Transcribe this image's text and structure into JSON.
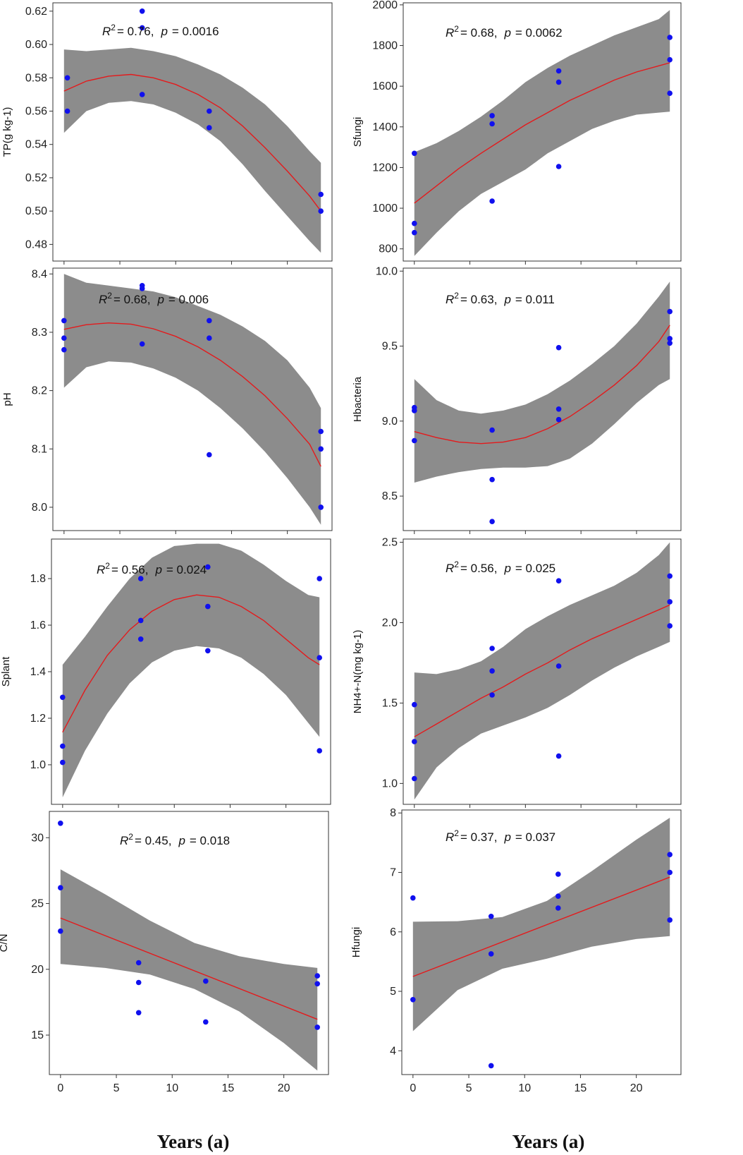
{
  "figure": {
    "xlabels": {
      "left": "Years (a)",
      "right": "Years (a)"
    }
  },
  "chart_data": [
    {
      "id": "tp",
      "type": "scatter",
      "ylabel": "TP(g kg-1)",
      "xlim": [
        -1,
        24
      ],
      "ylim": [
        0.47,
        0.625
      ],
      "yticks": [
        0.48,
        0.5,
        0.52,
        0.54,
        0.56,
        0.58,
        0.6,
        0.62
      ],
      "ytick_labels": [
        "0.48",
        "0.50",
        "0.52",
        "0.54",
        "0.56",
        "0.58",
        "0.60",
        "0.62"
      ],
      "xticks": [],
      "xtick_labels": [],
      "annotation": {
        "r2_label": "R",
        "r2_value": "= 0.76,",
        "p_label": "p",
        "p_value": "= 0.0016"
      },
      "points": [
        [
          0.3,
          0.58
        ],
        [
          0.3,
          0.56
        ],
        [
          7,
          0.62
        ],
        [
          7,
          0.61
        ],
        [
          7,
          0.57
        ],
        [
          13,
          0.56
        ],
        [
          13,
          0.55
        ],
        [
          23,
          0.51
        ],
        [
          23,
          0.5
        ]
      ],
      "fit": {
        "x": [
          0,
          2,
          4,
          6,
          8,
          10,
          12,
          14,
          16,
          18,
          20,
          22,
          23
        ],
        "y": [
          0.572,
          0.578,
          0.581,
          0.582,
          0.58,
          0.576,
          0.57,
          0.562,
          0.551,
          0.538,
          0.524,
          0.509,
          0.5
        ]
      },
      "ci_lower": [
        0.547,
        0.56,
        0.565,
        0.566,
        0.564,
        0.559,
        0.552,
        0.542,
        0.528,
        0.512,
        0.497,
        0.482,
        0.475
      ],
      "ci_upper": [
        0.597,
        0.596,
        0.597,
        0.598,
        0.596,
        0.593,
        0.588,
        0.582,
        0.574,
        0.564,
        0.551,
        0.536,
        0.529
      ]
    },
    {
      "id": "sfungi",
      "type": "scatter",
      "ylabel": "Sfungi",
      "xlim": [
        -1,
        24
      ],
      "ylim": [
        740,
        2010
      ],
      "yticks": [
        800,
        1000,
        1200,
        1400,
        1600,
        1800,
        2000
      ],
      "ytick_labels": [
        "800",
        "1000",
        "1200",
        "1400",
        "1600",
        "1800",
        "2000"
      ],
      "xticks": [],
      "xtick_labels": [],
      "annotation": {
        "r2_label": "R",
        "r2_value": "= 0.68,",
        "p_label": "p",
        "p_value": "= 0.0062"
      },
      "points": [
        [
          0,
          1270
        ],
        [
          0,
          925
        ],
        [
          0,
          880
        ],
        [
          7,
          1455
        ],
        [
          7,
          1415
        ],
        [
          7,
          1035
        ],
        [
          13,
          1675
        ],
        [
          13,
          1620
        ],
        [
          13,
          1205
        ],
        [
          23,
          1840
        ],
        [
          23,
          1730
        ],
        [
          23,
          1565
        ]
      ],
      "fit": {
        "x": [
          0,
          2,
          4,
          6,
          8,
          10,
          12,
          14,
          16,
          18,
          20,
          22,
          23
        ],
        "y": [
          1025,
          1110,
          1195,
          1270,
          1340,
          1410,
          1470,
          1530,
          1580,
          1630,
          1670,
          1700,
          1715
        ]
      },
      "ci_lower": [
        765,
        880,
        985,
        1070,
        1130,
        1190,
        1270,
        1330,
        1390,
        1430,
        1460,
        1470,
        1475
      ],
      "ci_upper": [
        1275,
        1320,
        1380,
        1450,
        1530,
        1620,
        1690,
        1750,
        1800,
        1850,
        1890,
        1930,
        1975
      ]
    },
    {
      "id": "ph",
      "type": "scatter",
      "ylabel": "pH",
      "xlim": [
        -1,
        24
      ],
      "ylim": [
        7.96,
        8.41
      ],
      "yticks": [
        8.0,
        8.1,
        8.2,
        8.3,
        8.4
      ],
      "ytick_labels": [
        "8.0",
        "8.1",
        "8.2",
        "8.3",
        "8.4"
      ],
      "xticks": [],
      "xtick_labels": [],
      "annotation": {
        "r2_label": "R",
        "r2_value": "= 0.68,",
        "p_label": "p",
        "p_value": "= 0.006"
      },
      "points": [
        [
          0,
          8.32
        ],
        [
          0,
          8.29
        ],
        [
          0,
          8.27
        ],
        [
          7,
          8.38
        ],
        [
          7,
          8.375
        ],
        [
          7,
          8.28
        ],
        [
          13,
          8.32
        ],
        [
          13,
          8.29
        ],
        [
          13,
          8.09
        ],
        [
          23,
          8.13
        ],
        [
          23,
          8.1
        ],
        [
          23,
          8.0
        ]
      ],
      "fit": {
        "x": [
          0,
          2,
          4,
          6,
          8,
          10,
          12,
          14,
          16,
          18,
          20,
          22,
          23
        ],
        "y": [
          8.305,
          8.313,
          8.316,
          8.314,
          8.306,
          8.293,
          8.275,
          8.252,
          8.224,
          8.191,
          8.152,
          8.108,
          8.07
        ]
      },
      "ci_lower": [
        8.205,
        8.24,
        8.25,
        8.248,
        8.238,
        8.222,
        8.2,
        8.17,
        8.135,
        8.095,
        8.05,
        8.0,
        7.97
      ],
      "ci_upper": [
        8.4,
        8.385,
        8.38,
        8.375,
        8.37,
        8.36,
        8.345,
        8.33,
        8.31,
        8.285,
        8.252,
        8.205,
        8.17
      ]
    },
    {
      "id": "hbacteria",
      "type": "scatter",
      "ylabel": "Hbacteria",
      "xlim": [
        -1,
        24
      ],
      "ylim": [
        8.27,
        10.02
      ],
      "yticks": [
        8.5,
        9.0,
        9.5,
        10.0
      ],
      "ytick_labels": [
        "8.5",
        "9.0",
        "9.5",
        "10.0"
      ],
      "xticks": [],
      "xtick_labels": [],
      "annotation": {
        "r2_label": "R",
        "r2_value": "= 0.63,",
        "p_label": "p",
        "p_value": "= 0.011"
      },
      "points": [
        [
          0,
          9.09
        ],
        [
          0,
          9.07
        ],
        [
          0,
          8.87
        ],
        [
          7,
          8.94
        ],
        [
          7,
          8.61
        ],
        [
          7,
          8.33
        ],
        [
          13,
          9.49
        ],
        [
          13,
          9.08
        ],
        [
          13,
          9.01
        ],
        [
          23,
          9.73
        ],
        [
          23,
          9.55
        ],
        [
          23,
          9.52
        ]
      ],
      "fit": {
        "x": [
          0,
          2,
          4,
          6,
          8,
          10,
          12,
          14,
          16,
          18,
          20,
          22,
          23
        ],
        "y": [
          8.93,
          8.89,
          8.86,
          8.85,
          8.86,
          8.89,
          8.95,
          9.03,
          9.13,
          9.24,
          9.37,
          9.53,
          9.64
        ]
      },
      "ci_lower": [
        8.59,
        8.63,
        8.66,
        8.68,
        8.69,
        8.69,
        8.7,
        8.75,
        8.85,
        8.98,
        9.12,
        9.24,
        9.28
      ],
      "ci_upper": [
        9.28,
        9.14,
        9.07,
        9.05,
        9.07,
        9.11,
        9.18,
        9.27,
        9.38,
        9.5,
        9.65,
        9.83,
        9.93
      ]
    },
    {
      "id": "splant",
      "type": "scatter",
      "ylabel": "Splant",
      "xlim": [
        -1,
        24
      ],
      "ylim": [
        0.83,
        1.97
      ],
      "yticks": [
        1.0,
        1.2,
        1.4,
        1.6,
        1.8
      ],
      "ytick_labels": [
        "1.0",
        "1.2",
        "1.4",
        "1.6",
        "1.8"
      ],
      "xticks": [],
      "xtick_labels": [],
      "annotation": {
        "r2_label": "R",
        "r2_value": "= 0.56,",
        "p_label": "p",
        "p_value": "= 0.024"
      },
      "points": [
        [
          0,
          1.29
        ],
        [
          0,
          1.08
        ],
        [
          0,
          1.01
        ],
        [
          7,
          1.8
        ],
        [
          7,
          1.62
        ],
        [
          7,
          1.54
        ],
        [
          13,
          1.85
        ],
        [
          13,
          1.68
        ],
        [
          13,
          1.49
        ],
        [
          23,
          1.8
        ],
        [
          23,
          1.46
        ],
        [
          23,
          1.06
        ]
      ],
      "fit": {
        "x": [
          0,
          2,
          4,
          6,
          8,
          10,
          12,
          14,
          16,
          18,
          20,
          22,
          23
        ],
        "y": [
          1.14,
          1.32,
          1.47,
          1.58,
          1.66,
          1.71,
          1.73,
          1.72,
          1.68,
          1.62,
          1.54,
          1.46,
          1.43
        ]
      },
      "ci_lower": [
        0.86,
        1.06,
        1.22,
        1.35,
        1.44,
        1.49,
        1.51,
        1.5,
        1.46,
        1.39,
        1.3,
        1.18,
        1.12
      ],
      "ci_upper": [
        1.43,
        1.55,
        1.68,
        1.8,
        1.89,
        1.94,
        1.95,
        1.95,
        1.92,
        1.86,
        1.79,
        1.73,
        1.72
      ]
    },
    {
      "id": "nh4",
      "type": "scatter",
      "ylabel": "NH4+-N(mg kg-1)",
      "xlim": [
        -1,
        24
      ],
      "ylim": [
        0.87,
        2.52
      ],
      "yticks": [
        1.0,
        1.5,
        2.0,
        2.5
      ],
      "ytick_labels": [
        "1.0",
        "1.5",
        "2.0",
        "2.5"
      ],
      "xticks": [],
      "xtick_labels": [],
      "annotation": {
        "r2_label": "R",
        "r2_value": "= 0.56,",
        "p_label": "p",
        "p_value": "= 0.025"
      },
      "points": [
        [
          0,
          1.49
        ],
        [
          0,
          1.26
        ],
        [
          0,
          1.03
        ],
        [
          7,
          1.84
        ],
        [
          7,
          1.7
        ],
        [
          7,
          1.55
        ],
        [
          13,
          2.26
        ],
        [
          13,
          1.73
        ],
        [
          13,
          1.17
        ],
        [
          23,
          2.29
        ],
        [
          23,
          2.13
        ],
        [
          23,
          1.98
        ]
      ],
      "fit": {
        "x": [
          0,
          2,
          4,
          6,
          8,
          10,
          12,
          14,
          16,
          18,
          20,
          22,
          23
        ],
        "y": [
          1.29,
          1.37,
          1.45,
          1.53,
          1.6,
          1.68,
          1.75,
          1.83,
          1.9,
          1.96,
          2.02,
          2.08,
          2.11
        ]
      },
      "ci_lower": [
        0.9,
        1.1,
        1.22,
        1.31,
        1.36,
        1.41,
        1.47,
        1.55,
        1.64,
        1.72,
        1.79,
        1.85,
        1.88
      ],
      "ci_upper": [
        1.69,
        1.68,
        1.71,
        1.76,
        1.85,
        1.96,
        2.04,
        2.11,
        2.17,
        2.23,
        2.31,
        2.42,
        2.5
      ]
    },
    {
      "id": "cn",
      "type": "scatter",
      "ylabel": "C/N",
      "xlim": [
        -1,
        24
      ],
      "ylim": [
        12,
        32
      ],
      "yticks": [
        15,
        20,
        25,
        30
      ],
      "ytick_labels": [
        "15",
        "20",
        "25",
        "30"
      ],
      "xticks": [
        0,
        5,
        10,
        15,
        20
      ],
      "xtick_labels": [
        "0",
        "5",
        "10",
        "15",
        "20"
      ],
      "annotation": {
        "r2_label": "R",
        "r2_value": "= 0.45,",
        "p_label": "p",
        "p_value": "= 0.018"
      },
      "points": [
        [
          0,
          31.1
        ],
        [
          0,
          26.2
        ],
        [
          0,
          22.9
        ],
        [
          7,
          20.5
        ],
        [
          7,
          19.0
        ],
        [
          7,
          16.7
        ],
        [
          13,
          19.1
        ],
        [
          13,
          16.0
        ],
        [
          23,
          19.5
        ],
        [
          23,
          18.9
        ],
        [
          23,
          15.6
        ]
      ],
      "fit": {
        "x": [
          0,
          23
        ],
        "y": [
          23.9,
          16.2
        ]
      },
      "ci_lower_x": [
        0,
        4,
        8,
        12,
        16,
        20,
        23
      ],
      "ci_lower": [
        20.4,
        20.1,
        19.6,
        18.5,
        16.8,
        14.4,
        12.3
      ],
      "ci_upper": [
        27.6,
        25.7,
        23.7,
        22.0,
        21.0,
        20.4,
        20.1
      ]
    },
    {
      "id": "hfungi",
      "type": "scatter",
      "ylabel": "Hfungi",
      "xlim": [
        -1,
        24
      ],
      "ylim": [
        3.6,
        8.05
      ],
      "yticks": [
        4,
        5,
        6,
        7,
        8
      ],
      "ytick_labels": [
        "4",
        "5",
        "6",
        "7",
        "8"
      ],
      "xticks": [
        0,
        5,
        10,
        15,
        20
      ],
      "xtick_labels": [
        "0",
        "5",
        "10",
        "15",
        "20"
      ],
      "annotation": {
        "r2_label": "R",
        "r2_value": "= 0.37,",
        "p_label": "p",
        "p_value": "= 0.037"
      },
      "points": [
        [
          0,
          6.57
        ],
        [
          0,
          4.86
        ],
        [
          7,
          6.26
        ],
        [
          7,
          5.63
        ],
        [
          7,
          3.75
        ],
        [
          13,
          6.97
        ],
        [
          13,
          6.6
        ],
        [
          13,
          6.4
        ],
        [
          23,
          7.3
        ],
        [
          23,
          7.0
        ],
        [
          23,
          6.2
        ]
      ],
      "fit": {
        "x": [
          0,
          23
        ],
        "y": [
          5.25,
          6.92
        ]
      },
      "ci_lower_x": [
        0,
        4,
        8,
        12,
        16,
        20,
        23
      ],
      "ci_lower": [
        4.33,
        5.02,
        5.38,
        5.55,
        5.75,
        5.88,
        5.93
      ],
      "ci_upper": [
        6.17,
        6.18,
        6.25,
        6.52,
        7.02,
        7.55,
        7.92
      ]
    }
  ],
  "colors": {
    "band": "#8c8c8c",
    "fit": "#e41a1c",
    "point": "#1010ee",
    "frame": "#333333"
  }
}
